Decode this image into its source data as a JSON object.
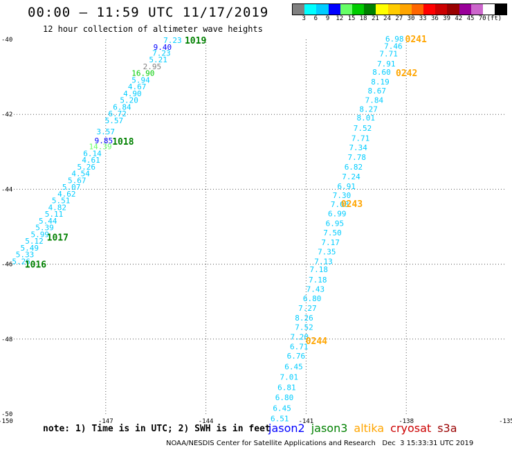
{
  "header": {
    "title": "00:00 – 11:59 UTC 11/17/2019",
    "subtitle": "12 hour collection of altimeter wave heights"
  },
  "colorbar": {
    "colors": [
      "#808080",
      "#00ffff",
      "#00ccff",
      "#0000ff",
      "#66ff66",
      "#00cc00",
      "#008000",
      "#ffff00",
      "#ffcc00",
      "#ffa500",
      "#ff6600",
      "#ff0000",
      "#cc0000",
      "#990000",
      "#990099",
      "#cc66cc",
      "#ffffff",
      "#000000"
    ],
    "labels": [
      "3",
      "6",
      "9",
      "12",
      "15",
      "18",
      "21",
      "24",
      "27",
      "30",
      "33",
      "36",
      "39",
      "42",
      "45",
      "70",
      "(ft)"
    ]
  },
  "legend": {
    "note": "note: 1) Time is in UTC; 2) SWH is in feet",
    "missions": [
      {
        "name": "jason2",
        "color": "#0000ff"
      },
      {
        "name": "jason3",
        "color": "#008000"
      },
      {
        "name": "altika",
        "color": "#ffa500"
      },
      {
        "name": "cryosat",
        "color": "#cc0000"
      },
      {
        "name": "s3a",
        "color": "#990000"
      }
    ]
  },
  "footer": {
    "text": "NOAA/NESDIS Center for Satellite Applications and Research   Dec  3 15:33:31 UTC 2019"
  },
  "chart_data": {
    "type": "scatter",
    "title": "00:00 – 11:59 UTC 11/17/2019",
    "subtitle": "12 hour collection of altimeter wave heights",
    "xlabel": "",
    "ylabel": "",
    "xlim": [
      -150,
      -135
    ],
    "ylim": [
      -50,
      -40
    ],
    "xticks": [
      "-150",
      "-147",
      "-144",
      "-141",
      "-138",
      "-135"
    ],
    "yticks": [
      "-40",
      "-42",
      "-44",
      "-46",
      "-48",
      "-50"
    ],
    "grid": true,
    "time_labels": [
      {
        "text": "1019",
        "lon": -144.31,
        "lat": -40.02,
        "mission": "jason3"
      },
      {
        "text": "1018",
        "lon": -146.48,
        "lat": -42.72,
        "mission": "jason3"
      },
      {
        "text": "1017",
        "lon": -148.44,
        "lat": -45.28,
        "mission": "jason3"
      },
      {
        "text": "1016",
        "lon": -149.1,
        "lat": -46.0,
        "mission": "jason3"
      },
      {
        "text": "0241",
        "lon": -137.71,
        "lat": -39.98,
        "mission": "altika"
      },
      {
        "text": "0242",
        "lon": -137.99,
        "lat": -40.89,
        "mission": "altika"
      },
      {
        "text": "0243",
        "lon": -139.63,
        "lat": -44.38,
        "mission": "altika"
      },
      {
        "text": "0244",
        "lon": -140.69,
        "lat": -48.04,
        "mission": "altika"
      }
    ],
    "series": [
      {
        "name": "jason3",
        "points": [
          {
            "lon": -145.0,
            "lat": -40.02,
            "swh": "7.23",
            "color": "#00ccff"
          },
          {
            "lon": -145.3,
            "lat": -40.2,
            "swh": "9.40",
            "color": "#0000ff"
          },
          {
            "lon": -145.33,
            "lat": -40.36,
            "swh": "7.23",
            "color": "#00ccff"
          },
          {
            "lon": -145.43,
            "lat": -40.54,
            "swh": "5.21",
            "color": "#00ccff"
          },
          {
            "lon": -145.61,
            "lat": -40.72,
            "swh": "2.95",
            "color": "#808080"
          },
          {
            "lon": -145.88,
            "lat": -40.9,
            "swh": "16.90",
            "color": "#00cc00"
          },
          {
            "lon": -145.95,
            "lat": -41.08,
            "swh": "5.94",
            "color": "#00ccff"
          },
          {
            "lon": -146.06,
            "lat": -41.26,
            "swh": "4.67",
            "color": "#00ccff"
          },
          {
            "lon": -146.2,
            "lat": -41.44,
            "swh": "4.90",
            "color": "#00ccff"
          },
          {
            "lon": -146.3,
            "lat": -41.62,
            "swh": "5.20",
            "color": "#00ccff"
          },
          {
            "lon": -146.51,
            "lat": -41.8,
            "swh": "6.84",
            "color": "#00ccff"
          },
          {
            "lon": -146.65,
            "lat": -41.98,
            "swh": "6.72",
            "color": "#00ccff"
          },
          {
            "lon": -146.75,
            "lat": -42.16,
            "swh": "5.57",
            "color": "#00ccff"
          },
          {
            "lon": -147.0,
            "lat": -42.46,
            "swh": "3.57",
            "color": "#00ccff"
          },
          {
            "lon": -147.06,
            "lat": -42.7,
            "swh": "9.85",
            "color": "#0000ff"
          },
          {
            "lon": -147.16,
            "lat": -42.86,
            "swh": "14.39",
            "color": "#66ff66"
          },
          {
            "lon": -147.4,
            "lat": -43.04,
            "swh": "6.14",
            "color": "#00ccff"
          },
          {
            "lon": -147.44,
            "lat": -43.22,
            "swh": "4.61",
            "color": "#00ccff"
          },
          {
            "lon": -147.58,
            "lat": -43.4,
            "swh": "5.26",
            "color": "#00ccff"
          },
          {
            "lon": -147.75,
            "lat": -43.58,
            "swh": "4.54",
            "color": "#00ccff"
          },
          {
            "lon": -147.86,
            "lat": -43.76,
            "swh": "5.67",
            "color": "#00ccff"
          },
          {
            "lon": -148.03,
            "lat": -43.94,
            "swh": "5.07",
            "color": "#00ccff"
          },
          {
            "lon": -148.17,
            "lat": -44.12,
            "swh": "4.62",
            "color": "#00ccff"
          },
          {
            "lon": -148.34,
            "lat": -44.3,
            "swh": "5.51",
            "color": "#00ccff"
          },
          {
            "lon": -148.45,
            "lat": -44.48,
            "swh": "4.82",
            "color": "#00ccff"
          },
          {
            "lon": -148.55,
            "lat": -44.66,
            "swh": "5.11",
            "color": "#00ccff"
          },
          {
            "lon": -148.73,
            "lat": -44.84,
            "swh": "5.44",
            "color": "#00ccff"
          },
          {
            "lon": -148.83,
            "lat": -45.02,
            "swh": "5.39",
            "color": "#00ccff"
          },
          {
            "lon": -148.97,
            "lat": -45.2,
            "swh": "5.99",
            "color": "#00ccff"
          },
          {
            "lon": -149.14,
            "lat": -45.38,
            "swh": "5.12",
            "color": "#00ccff"
          },
          {
            "lon": -149.28,
            "lat": -45.56,
            "swh": "5.49",
            "color": "#00ccff"
          },
          {
            "lon": -149.42,
            "lat": -45.74,
            "swh": "5.33",
            "color": "#00ccff"
          },
          {
            "lon": -149.53,
            "lat": -45.92,
            "swh": "5.26",
            "color": "#00ccff"
          }
        ]
      },
      {
        "name": "altika",
        "points": [
          {
            "lon": -138.35,
            "lat": -39.98,
            "swh": "6.98",
            "color": "#00ccff"
          },
          {
            "lon": -138.39,
            "lat": -40.18,
            "swh": "7.46",
            "color": "#00ccff"
          },
          {
            "lon": -138.53,
            "lat": -40.38,
            "swh": "7.71",
            "color": "#00ccff"
          },
          {
            "lon": -138.6,
            "lat": -40.65,
            "swh": "7.91",
            "color": "#00ccff"
          },
          {
            "lon": -138.74,
            "lat": -40.87,
            "swh": "8.60",
            "color": "#00ccff"
          },
          {
            "lon": -138.78,
            "lat": -41.13,
            "swh": "8.19",
            "color": "#00ccff"
          },
          {
            "lon": -138.88,
            "lat": -41.37,
            "swh": "8.67",
            "color": "#00ccff"
          },
          {
            "lon": -138.96,
            "lat": -41.62,
            "swh": "7.84",
            "color": "#00ccff"
          },
          {
            "lon": -139.13,
            "lat": -41.86,
            "swh": "8.27",
            "color": "#00ccff"
          },
          {
            "lon": -139.21,
            "lat": -42.09,
            "swh": "8.01",
            "color": "#00ccff"
          },
          {
            "lon": -139.31,
            "lat": -42.37,
            "swh": "7.52",
            "color": "#00ccff"
          },
          {
            "lon": -139.37,
            "lat": -42.63,
            "swh": "7.71",
            "color": "#00ccff"
          },
          {
            "lon": -139.44,
            "lat": -42.88,
            "swh": "7.34",
            "color": "#00ccff"
          },
          {
            "lon": -139.48,
            "lat": -43.14,
            "swh": "7.78",
            "color": "#00ccff"
          },
          {
            "lon": -139.58,
            "lat": -43.4,
            "swh": "6.82",
            "color": "#00ccff"
          },
          {
            "lon": -139.65,
            "lat": -43.66,
            "swh": "7.24",
            "color": "#00ccff"
          },
          {
            "lon": -139.79,
            "lat": -43.92,
            "swh": "6.91",
            "color": "#00ccff"
          },
          {
            "lon": -139.93,
            "lat": -44.16,
            "swh": "7.30",
            "color": "#00ccff"
          },
          {
            "lon": -139.99,
            "lat": -44.4,
            "swh": "7.08",
            "color": "#00ccff"
          },
          {
            "lon": -140.07,
            "lat": -44.65,
            "swh": "6.99",
            "color": "#00ccff"
          },
          {
            "lon": -140.14,
            "lat": -44.91,
            "swh": "6.95",
            "color": "#00ccff"
          },
          {
            "lon": -140.21,
            "lat": -45.16,
            "swh": "7.50",
            "color": "#00ccff"
          },
          {
            "lon": -140.27,
            "lat": -45.42,
            "swh": "7.17",
            "color": "#00ccff"
          },
          {
            "lon": -140.38,
            "lat": -45.67,
            "swh": "7.35",
            "color": "#00ccff"
          },
          {
            "lon": -140.48,
            "lat": -45.92,
            "swh": "7.13",
            "color": "#00ccff"
          },
          {
            "lon": -140.62,
            "lat": -46.14,
            "swh": "7.18",
            "color": "#00ccff"
          },
          {
            "lon": -140.65,
            "lat": -46.41,
            "swh": "7.18",
            "color": "#00ccff"
          },
          {
            "lon": -140.72,
            "lat": -46.66,
            "swh": "7.43",
            "color": "#00ccff"
          },
          {
            "lon": -140.82,
            "lat": -46.91,
            "swh": "6.80",
            "color": "#00ccff"
          },
          {
            "lon": -140.96,
            "lat": -47.17,
            "swh": "7.27",
            "color": "#00ccff"
          },
          {
            "lon": -141.06,
            "lat": -47.43,
            "swh": "8.26",
            "color": "#00ccff"
          },
          {
            "lon": -141.06,
            "lat": -47.68,
            "swh": "7.52",
            "color": "#00ccff"
          },
          {
            "lon": -141.2,
            "lat": -47.94,
            "swh": "7.20",
            "color": "#00ccff"
          },
          {
            "lon": -141.21,
            "lat": -48.2,
            "swh": "6.71",
            "color": "#00ccff"
          },
          {
            "lon": -141.3,
            "lat": -48.45,
            "swh": "6.76",
            "color": "#00ccff"
          },
          {
            "lon": -141.37,
            "lat": -48.73,
            "swh": "6.45",
            "color": "#00ccff"
          },
          {
            "lon": -141.51,
            "lat": -49.01,
            "swh": "7.01",
            "color": "#00ccff"
          },
          {
            "lon": -141.58,
            "lat": -49.29,
            "swh": "6.81",
            "color": "#00ccff"
          },
          {
            "lon": -141.65,
            "lat": -49.56,
            "swh": "6.80",
            "color": "#00ccff"
          },
          {
            "lon": -141.72,
            "lat": -49.84,
            "swh": "6.45",
            "color": "#00ccff"
          },
          {
            "lon": -141.79,
            "lat": -50.12,
            "swh": "6.51",
            "color": "#00ccff"
          }
        ]
      }
    ]
  }
}
